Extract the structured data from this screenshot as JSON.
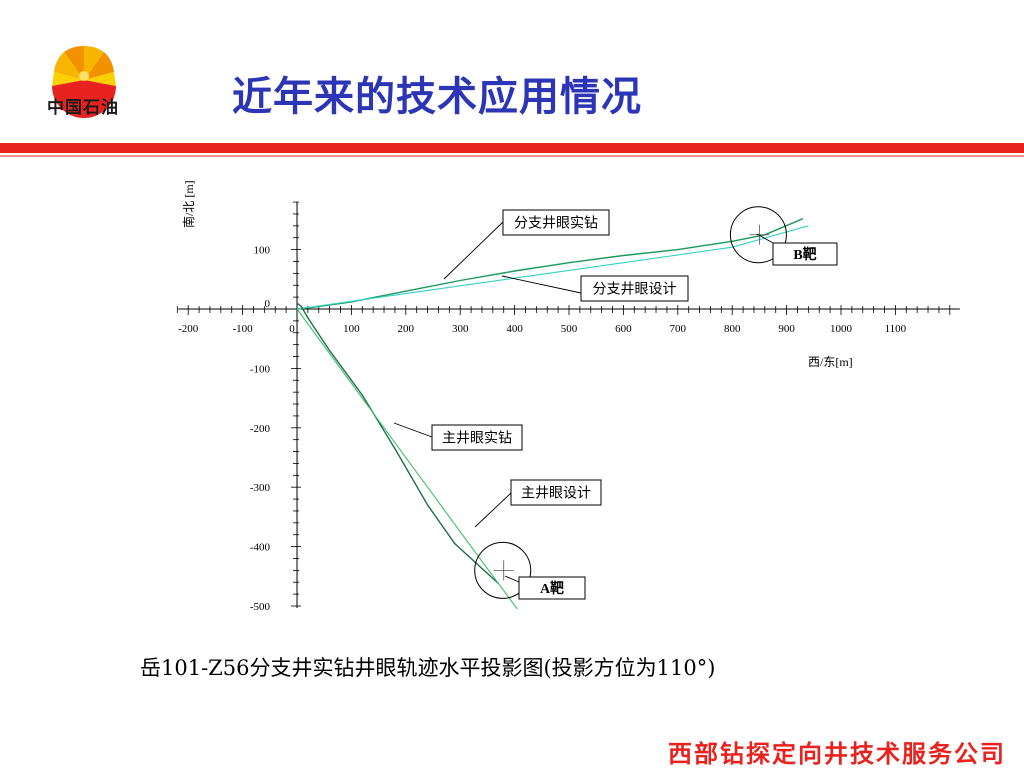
{
  "header": {
    "logo_text": "中国石油",
    "title": "近年来的技术应用情况"
  },
  "colors": {
    "title": "#2b35b5",
    "accent_red": "#e8231f",
    "actual_path": "#1a9a5a",
    "design_path": "#35d0c8"
  },
  "chart_data": {
    "type": "line",
    "title": "",
    "xlabel": "西/东[m]",
    "ylabel": "南/北 [m]",
    "xlim": [
      -200,
      1200
    ],
    "ylim": [
      -500,
      180
    ],
    "x_ticks": [
      "-200",
      "-100",
      "0",
      "100",
      "200",
      "300",
      "400",
      "500",
      "600",
      "700",
      "800",
      "900",
      "1000",
      "1100"
    ],
    "y_ticks": [
      "100",
      "0",
      "-100",
      "-200",
      "-300",
      "-400",
      "-500"
    ],
    "series": [
      {
        "name": "分支井眼实钻",
        "x": [
          0,
          30,
          100,
          200,
          300,
          400,
          500,
          600,
          700,
          800,
          860,
          930
        ],
        "y": [
          0,
          3,
          12,
          30,
          48,
          64,
          78,
          90,
          100,
          114,
          125,
          152
        ]
      },
      {
        "name": "分支井眼设计",
        "x": [
          0,
          100,
          200,
          300,
          400,
          500,
          600,
          700,
          800,
          940
        ],
        "y": [
          0,
          13,
          26,
          39,
          52,
          65,
          78,
          91,
          104,
          140
        ]
      },
      {
        "name": "主井眼实钻",
        "x": [
          0,
          8,
          20,
          60,
          120,
          180,
          240,
          290,
          370
        ],
        "y": [
          10,
          4,
          -15,
          -70,
          -145,
          -235,
          -330,
          -395,
          -462
        ]
      },
      {
        "name": "主井眼设计",
        "x": [
          0,
          80,
          160,
          240,
          320,
          405
        ],
        "y": [
          0,
          -100,
          -200,
          -300,
          -400,
          -505
        ]
      }
    ],
    "targets": [
      {
        "name": "B靶",
        "x": 850,
        "y": 125
      },
      {
        "name": "A靶",
        "x": 380,
        "y": -440
      }
    ]
  },
  "caption": "岳101-Z56分支井实钻井眼轨迹水平投影图(投影方位为110°)",
  "footer": "西部钻探定向井技术服务公司"
}
